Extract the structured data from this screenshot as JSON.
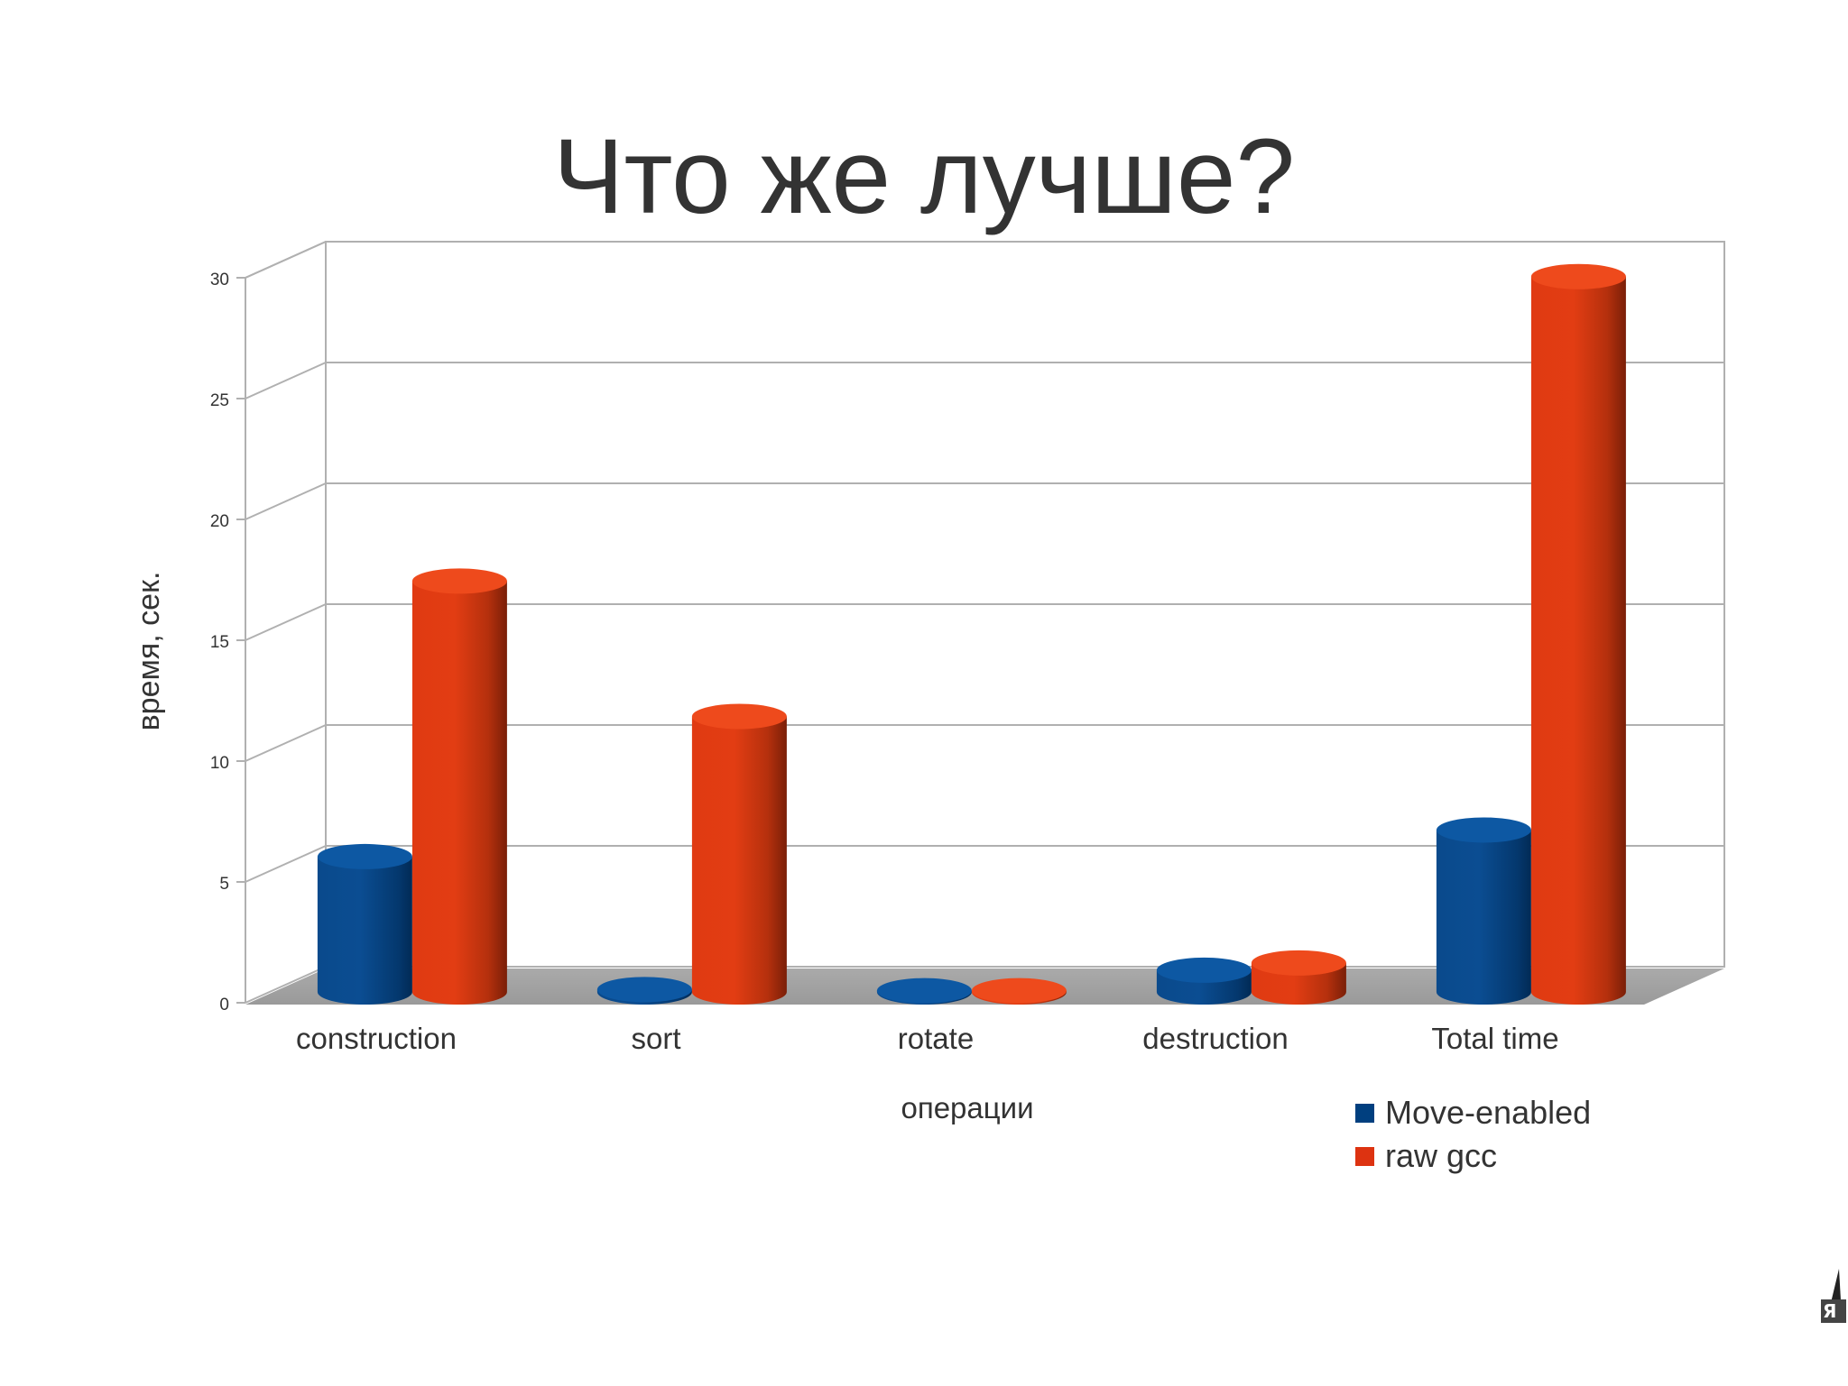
{
  "slide": {
    "title": "Что же лучше?"
  },
  "chart_data": {
    "type": "bar",
    "categories": [
      "construction",
      "sort",
      "rotate",
      "destruction",
      "Total time"
    ],
    "series": [
      {
        "name": "Move-enabled",
        "values": [
          5.6,
          0.1,
          0.05,
          0.9,
          6.7
        ],
        "color": "#003f7f"
      },
      {
        "name": "raw gcc",
        "values": [
          17.0,
          11.4,
          0.05,
          1.2,
          29.6
        ],
        "color": "#dd3311"
      }
    ],
    "title": "",
    "xlabel": "операции",
    "ylabel": "время, сек.",
    "ylim": [
      0,
      30
    ],
    "yticks": [
      "0",
      "5",
      "10",
      "15",
      "20",
      "25",
      "30"
    ],
    "grid": true,
    "legend_position": "bottom-right",
    "style": "3d-cylinders"
  }
}
